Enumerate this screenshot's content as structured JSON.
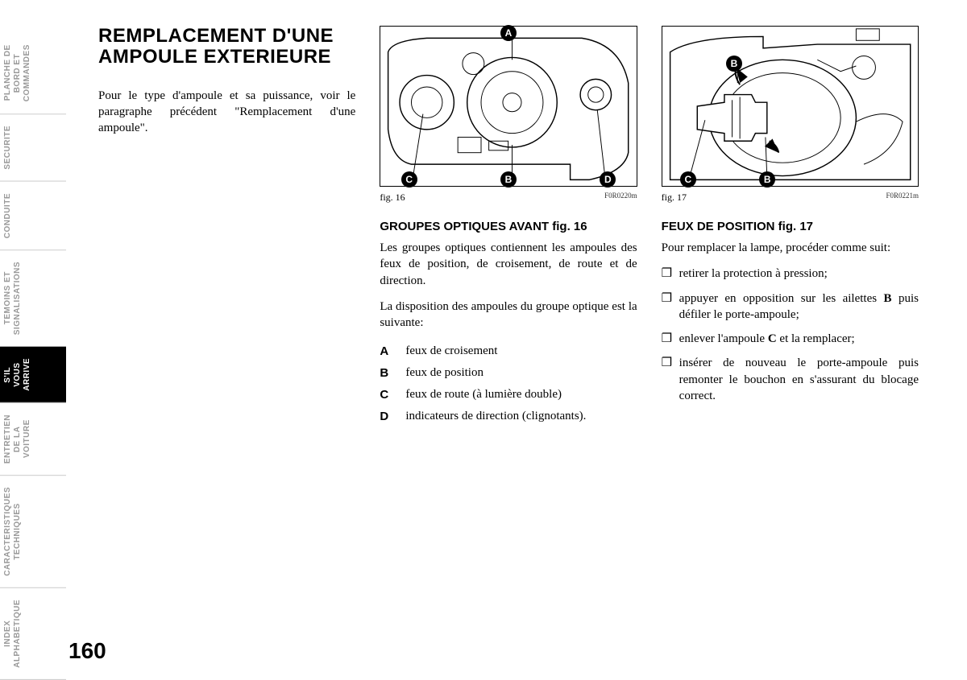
{
  "sidebar": {
    "tabs": [
      {
        "label": "PLANCHE DE BORD ET COMMANDES",
        "active": false
      },
      {
        "label": "SECURITE",
        "active": false
      },
      {
        "label": "CONDUITE",
        "active": false
      },
      {
        "label": "TEMOINS ET SIGNALISATIONS",
        "active": false
      },
      {
        "label": "S'IL VOUS ARRIVE",
        "active": true
      },
      {
        "label": "ENTRETIEN DE LA VOITURE",
        "active": false
      },
      {
        "label": "CARACTERISTIQUES TECHNIQUES",
        "active": false
      },
      {
        "label": "INDEX ALPHABETIQUE",
        "active": false
      }
    ]
  },
  "pageNumber": "160",
  "col1": {
    "title": "REMPLACEMENT D'UNE AMPOULE EXTERIEURE",
    "intro": "Pour le type d'ampoule et sa puissance, voir le paragraphe précédent \"Remplacement d'une ampoule\"."
  },
  "col2": {
    "figCaption": "fig. 16",
    "figCode": "F0R0220m",
    "callouts": {
      "A": "A",
      "B": "B",
      "C": "C",
      "D": "D"
    },
    "heading": "GROUPES OPTIQUES AVANT fig. 16",
    "p1": "Les groupes optiques contiennent les ampoules des feux de position, de croisement, de route et de direction.",
    "p2": "La disposition des ampoules du groupe optique est la suivante:",
    "list": {
      "A": "feux de croisement",
      "B": "feux de position",
      "C": "feux de route (à lumière double)",
      "D": "indicateurs de direction (clignotants)."
    }
  },
  "col3": {
    "figCaption": "fig. 17",
    "figCode": "F0R0221m",
    "callouts": {
      "B1": "B",
      "B2": "B",
      "C": "C"
    },
    "heading": "FEUX DE POSITION fig. 17",
    "p1": "Pour remplacer la lampe, procéder comme suit:",
    "bullets": {
      "0": "retirer la protection à pression;",
      "1": "appuyer en opposition sur les ailettes <b>B</b> puis défiler le porte-ampoule;",
      "2": "enlever l'ampoule <b>C</b> et la remplacer;",
      "3": "insérer de nouveau le porte-ampoule puis remonter le bouchon en s'assurant du blocage correct."
    }
  }
}
